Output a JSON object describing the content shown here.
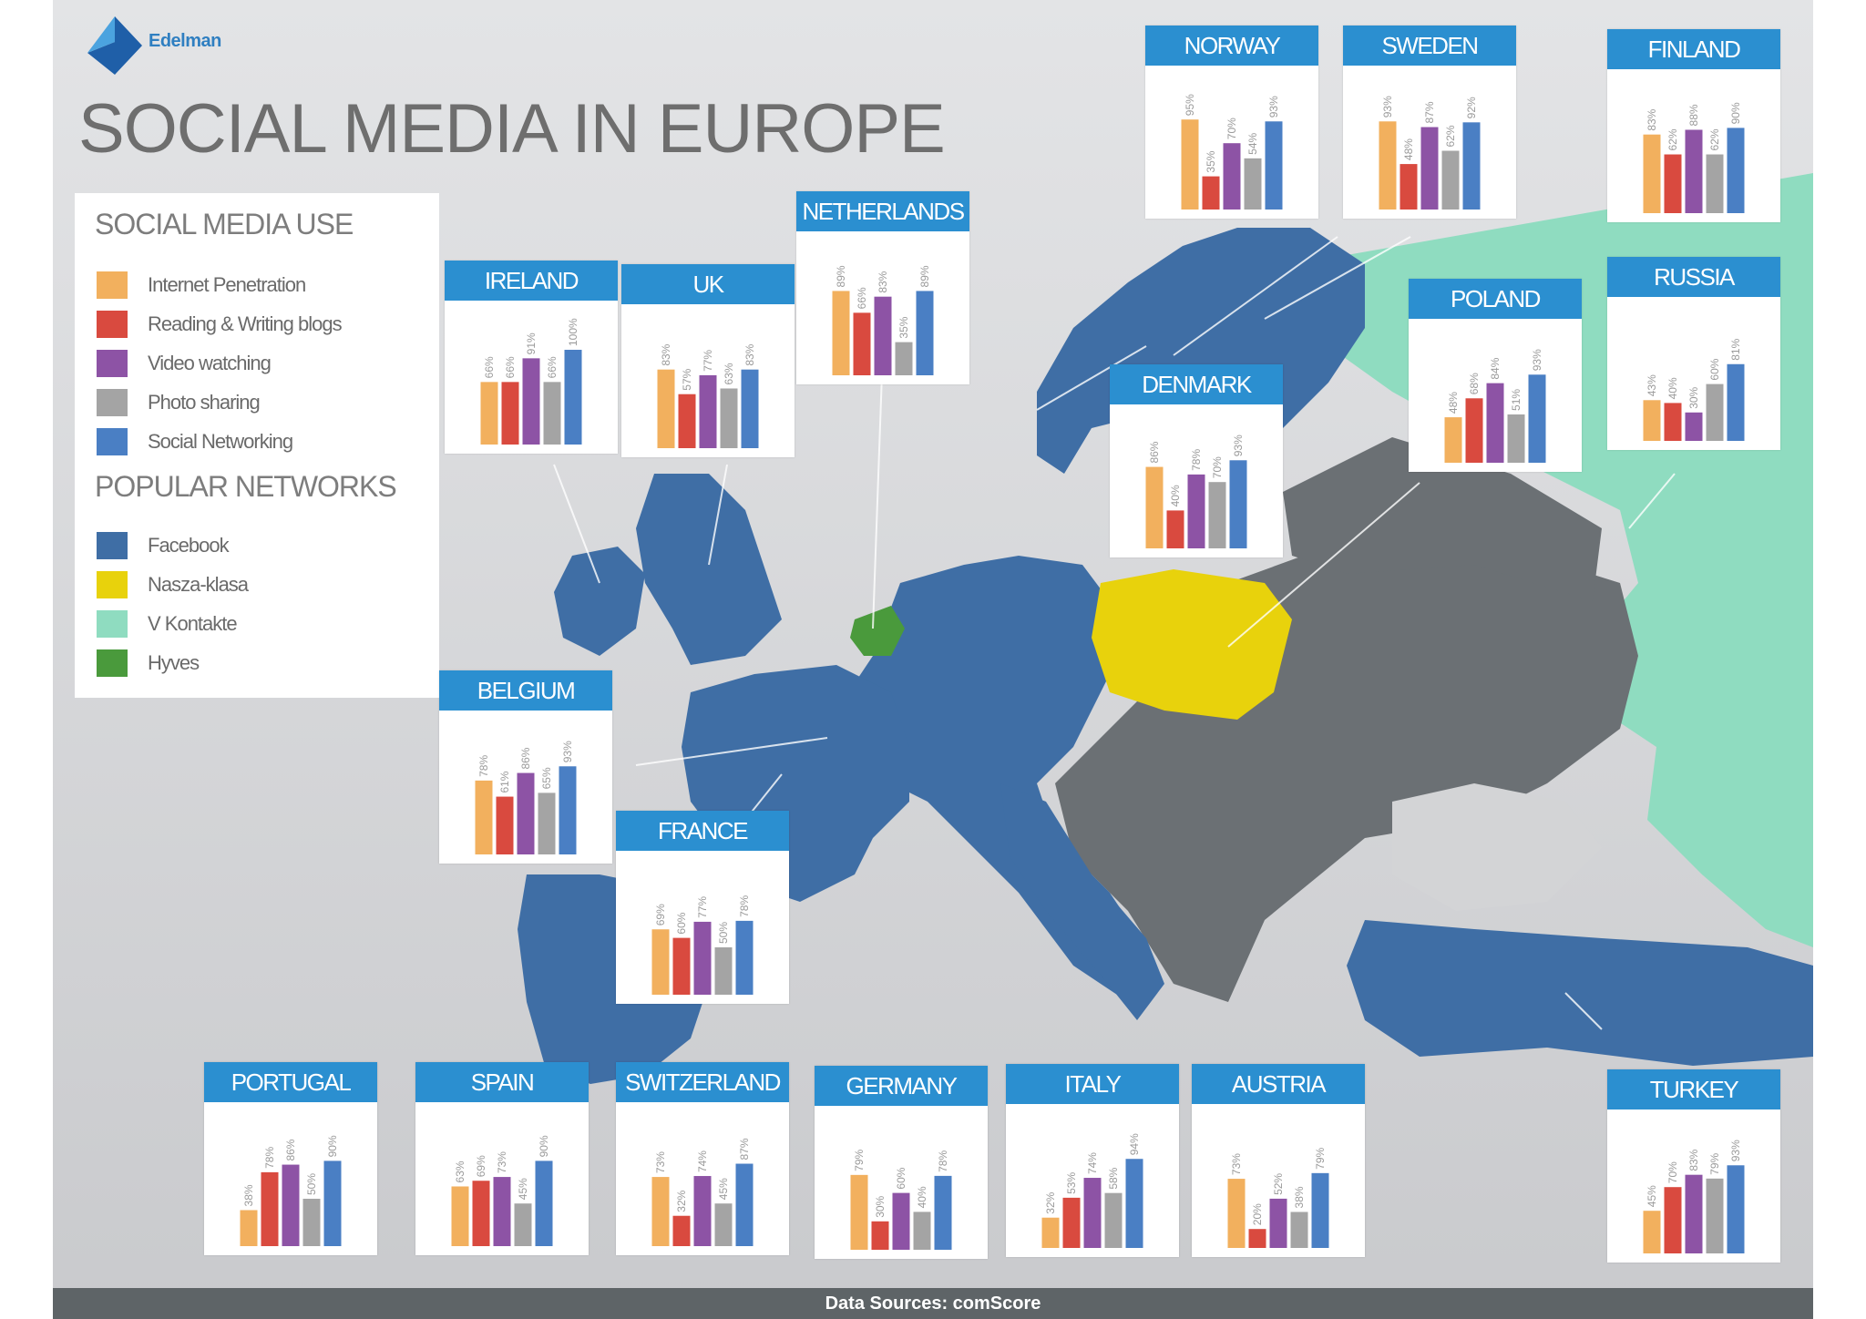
{
  "title": "SOCIAL MEDIA IN EUROPE",
  "logo_text": "Edelman",
  "legend": {
    "use_heading": "SOCIAL MEDIA USE",
    "use_items": [
      {
        "label": "Internet Penetration",
        "color": "#f2b05e"
      },
      {
        "label": "Reading & Writing blogs",
        "color": "#d94a3f"
      },
      {
        "label": "Video watching",
        "color": "#8d53a5"
      },
      {
        "label": "Photo sharing",
        "color": "#a4a4a4"
      },
      {
        "label": "Social Networking",
        "color": "#4a7fc4"
      }
    ],
    "networks_heading": "POPULAR NETWORKS",
    "network_items": [
      {
        "label": "Facebook",
        "color": "#3f6ea5"
      },
      {
        "label": "Nasza-klasa",
        "color": "#e8d20c"
      },
      {
        "label": "V Kontakte",
        "color": "#8fdcc0"
      },
      {
        "label": "Hyves",
        "color": "#4a9a3c"
      }
    ]
  },
  "map_colors": {
    "sea": "#d3d4d6",
    "land_other": "#6b7074",
    "facebook": "#3f6ea5",
    "nasza_klasa": "#e8d20c",
    "v_kontakte": "#8fdcc0",
    "hyves": "#4a9a3c"
  },
  "chart_data": [
    {
      "type": "bar",
      "title": "NORWAY",
      "categories": [
        "Internet Penetration",
        "Reading & Writing blogs",
        "Video watching",
        "Photo sharing",
        "Social Networking"
      ],
      "values": [
        95,
        35,
        70,
        54,
        93
      ]
    },
    {
      "type": "bar",
      "title": "SWEDEN",
      "categories": [
        "Internet Penetration",
        "Reading & Writing blogs",
        "Video watching",
        "Photo sharing",
        "Social Networking"
      ],
      "values": [
        93,
        48,
        87,
        62,
        92
      ]
    },
    {
      "type": "bar",
      "title": "FINLAND",
      "categories": [
        "Internet Penetration",
        "Reading & Writing blogs",
        "Video watching",
        "Photo sharing",
        "Social Networking"
      ],
      "values": [
        83,
        62,
        88,
        62,
        90
      ]
    },
    {
      "type": "bar",
      "title": "NETHERLANDS",
      "categories": [
        "Internet Penetration",
        "Reading & Writing blogs",
        "Video watching",
        "Photo sharing",
        "Social Networking"
      ],
      "values": [
        89,
        66,
        83,
        35,
        89
      ]
    },
    {
      "type": "bar",
      "title": "IRELAND",
      "categories": [
        "Internet Penetration",
        "Reading & Writing blogs",
        "Video watching",
        "Photo sharing",
        "Social Networking"
      ],
      "values": [
        66,
        66,
        91,
        66,
        100
      ]
    },
    {
      "type": "bar",
      "title": "UK",
      "categories": [
        "Internet Penetration",
        "Reading & Writing blogs",
        "Video watching",
        "Photo sharing",
        "Social Networking"
      ],
      "values": [
        83,
        57,
        77,
        63,
        83
      ]
    },
    {
      "type": "bar",
      "title": "DENMARK",
      "categories": [
        "Internet Penetration",
        "Reading & Writing blogs",
        "Video watching",
        "Photo sharing",
        "Social Networking"
      ],
      "values": [
        86,
        40,
        78,
        70,
        93
      ]
    },
    {
      "type": "bar",
      "title": "POLAND",
      "categories": [
        "Internet Penetration",
        "Reading & Writing blogs",
        "Video watching",
        "Photo sharing",
        "Social Networking"
      ],
      "values": [
        48,
        68,
        84,
        51,
        93
      ]
    },
    {
      "type": "bar",
      "title": "RUSSIA",
      "categories": [
        "Internet Penetration",
        "Reading & Writing blogs",
        "Video watching",
        "Photo sharing",
        "Social Networking"
      ],
      "values": [
        43,
        40,
        30,
        60,
        81
      ]
    },
    {
      "type": "bar",
      "title": "BELGIUM",
      "categories": [
        "Internet Penetration",
        "Reading & Writing blogs",
        "Video watching",
        "Photo sharing",
        "Social Networking"
      ],
      "values": [
        78,
        61,
        86,
        65,
        93
      ]
    },
    {
      "type": "bar",
      "title": "FRANCE",
      "categories": [
        "Internet Penetration",
        "Reading & Writing blogs",
        "Video watching",
        "Photo sharing",
        "Social Networking"
      ],
      "values": [
        69,
        60,
        77,
        50,
        78
      ]
    },
    {
      "type": "bar",
      "title": "PORTUGAL",
      "categories": [
        "Internet Penetration",
        "Reading & Writing blogs",
        "Video watching",
        "Photo sharing",
        "Social Networking"
      ],
      "values": [
        38,
        78,
        86,
        50,
        90
      ]
    },
    {
      "type": "bar",
      "title": "SPAIN",
      "categories": [
        "Internet Penetration",
        "Reading & Writing blogs",
        "Video watching",
        "Photo sharing",
        "Social Networking"
      ],
      "values": [
        63,
        69,
        73,
        45,
        90
      ]
    },
    {
      "type": "bar",
      "title": "SWITZERLAND",
      "categories": [
        "Internet Penetration",
        "Reading & Writing blogs",
        "Video watching",
        "Photo sharing",
        "Social Networking"
      ],
      "values": [
        73,
        32,
        74,
        45,
        87
      ]
    },
    {
      "type": "bar",
      "title": "GERMANY",
      "categories": [
        "Internet Penetration",
        "Reading & Writing blogs",
        "Video watching",
        "Photo sharing",
        "Social Networking"
      ],
      "values": [
        79,
        30,
        60,
        40,
        78
      ]
    },
    {
      "type": "bar",
      "title": "ITALY",
      "categories": [
        "Internet Penetration",
        "Reading & Writing blogs",
        "Video watching",
        "Photo sharing",
        "Social Networking"
      ],
      "values": [
        32,
        53,
        74,
        58,
        94
      ]
    },
    {
      "type": "bar",
      "title": "AUSTRIA",
      "categories": [
        "Internet Penetration",
        "Reading & Writing blogs",
        "Video watching",
        "Photo sharing",
        "Social Networking"
      ],
      "values": [
        73,
        20,
        52,
        38,
        79
      ]
    },
    {
      "type": "bar",
      "title": "TURKEY",
      "categories": [
        "Internet Penetration",
        "Reading & Writing blogs",
        "Video watching",
        "Photo sharing",
        "Social Networking"
      ],
      "values": [
        45,
        70,
        83,
        79,
        93
      ]
    }
  ],
  "footer": "Data Sources: comScore"
}
